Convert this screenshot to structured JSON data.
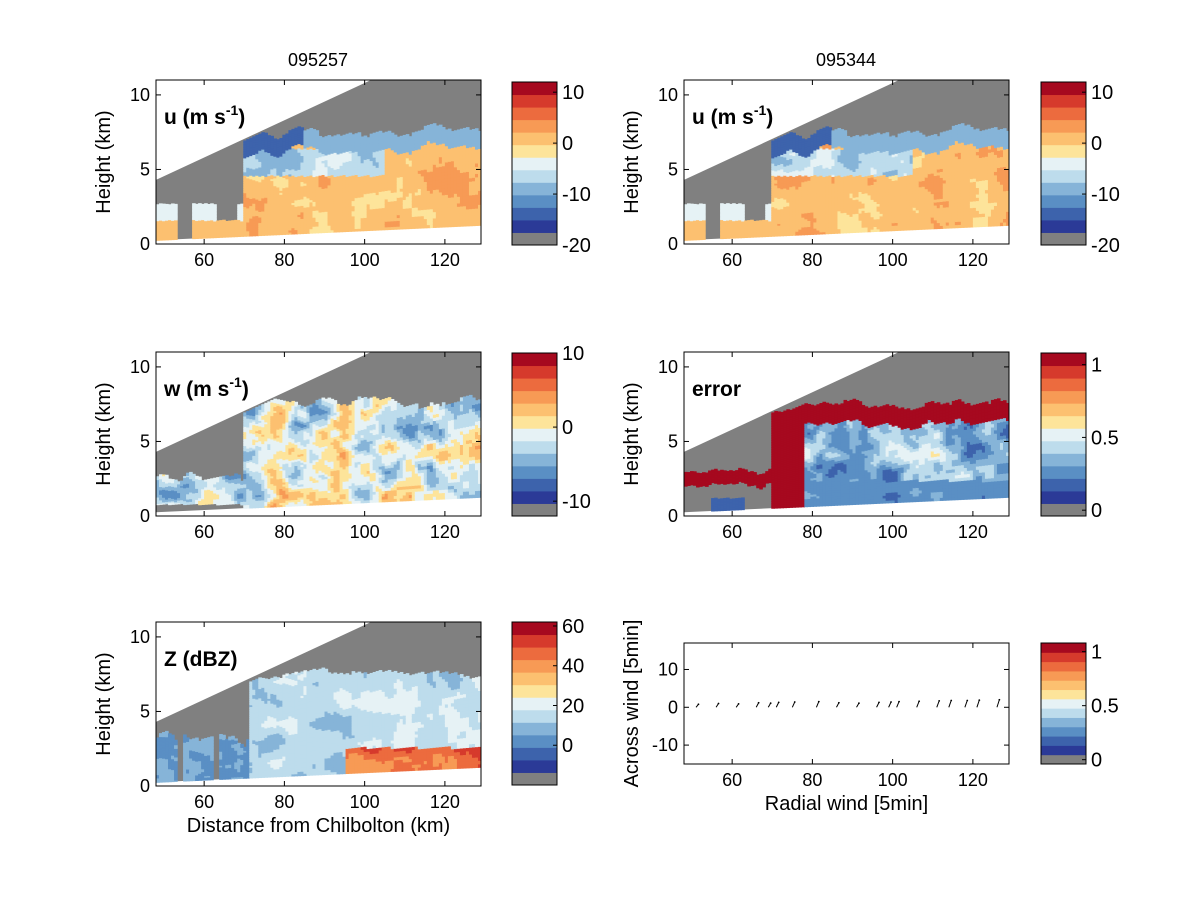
{
  "figure": {
    "column_titles": [
      "095257",
      "095344"
    ]
  },
  "palettes": {
    "filled": [
      "#2b3a97",
      "#3d63ac",
      "#5a8fc4",
      "#86b4d8",
      "#bddcec",
      "#e6f2f5",
      "#fde49a",
      "#fcc070",
      "#f79a55",
      "#ec6b3e",
      "#d63a2c",
      "#a6091f"
    ],
    "missing": "#808080",
    "quiver": "#000000"
  },
  "chart_data": [
    {
      "id": "u1",
      "type": "heatmap",
      "title": "095257",
      "inset_label": "u (m s",
      "inset_sup": "-1",
      "inset_close": ")",
      "xlabel": "",
      "ylabel": "Height (km)",
      "xlim": [
        48,
        129
      ],
      "ylim": [
        0,
        11
      ],
      "xticks": [
        "60",
        "80",
        "100",
        "120"
      ],
      "yticks": [
        "0",
        "5",
        "10"
      ],
      "colorbar": {
        "range": [
          -20,
          12
        ],
        "ticks": [
          "-20",
          "-10",
          "0",
          "10"
        ]
      }
    },
    {
      "id": "u2",
      "type": "heatmap",
      "title": "095344",
      "inset_label": "u (m s",
      "inset_sup": "-1",
      "inset_close": ")",
      "xlabel": "",
      "ylabel": "Height (km)",
      "xlim": [
        48,
        129
      ],
      "ylim": [
        0,
        11
      ],
      "xticks": [
        "60",
        "80",
        "100",
        "120"
      ],
      "yticks": [
        "0",
        "5",
        "10"
      ],
      "colorbar": {
        "range": [
          -20,
          12
        ],
        "ticks": [
          "-20",
          "-10",
          "0",
          "10"
        ]
      }
    },
    {
      "id": "w1",
      "type": "heatmap",
      "title": "",
      "inset_label": "w (m s",
      "inset_sup": "-1",
      "inset_close": ")",
      "xlabel": "",
      "ylabel": "Height (km)",
      "xlim": [
        48,
        129
      ],
      "ylim": [
        0,
        11
      ],
      "xticks": [
        "60",
        "80",
        "100",
        "120"
      ],
      "yticks": [
        "0",
        "5",
        "10"
      ],
      "colorbar": {
        "range": [
          -12,
          10
        ],
        "ticks": [
          "-10",
          "0",
          "10"
        ]
      }
    },
    {
      "id": "err",
      "type": "heatmap",
      "title": "",
      "inset_label": "error",
      "inset_sup": "",
      "inset_close": "",
      "xlabel": "",
      "ylabel": "Height (km)",
      "xlim": [
        48,
        129
      ],
      "ylim": [
        0,
        11
      ],
      "xticks": [
        "60",
        "80",
        "100",
        "120"
      ],
      "yticks": [
        "0",
        "5",
        "10"
      ],
      "colorbar": {
        "range": [
          -0.04,
          1.08
        ],
        "ticks": [
          "0",
          "0.5",
          "1"
        ]
      }
    },
    {
      "id": "z",
      "type": "heatmap",
      "title": "",
      "inset_label": "Z (dBZ)",
      "inset_sup": "",
      "inset_close": "",
      "xlabel": "Distance from Chilbolton (km)",
      "ylabel": "Height (km)",
      "xlim": [
        48,
        129
      ],
      "ylim": [
        0,
        11
      ],
      "xticks": [
        "60",
        "80",
        "100",
        "120"
      ],
      "yticks": [
        "0",
        "5",
        "10"
      ],
      "colorbar": {
        "range": [
          -20,
          62
        ],
        "ticks": [
          "0",
          "20",
          "40",
          "60"
        ]
      }
    },
    {
      "id": "quiver",
      "type": "scatter",
      "title": "",
      "inset_label": "",
      "inset_sup": "",
      "inset_close": "",
      "xlabel": "Radial wind [5min]",
      "ylabel": "Across wind [5min]",
      "xlim": [
        48,
        129
      ],
      "ylim": [
        -15,
        17
      ],
      "xticks": [
        "60",
        "80",
        "100",
        "120"
      ],
      "yticks": [
        "-10",
        "0",
        "10"
      ],
      "x": [
        51,
        56,
        61,
        66,
        69,
        71,
        75,
        81,
        86,
        91,
        96,
        99,
        101,
        106,
        111,
        114,
        118,
        121,
        126
      ],
      "y": [
        0.2,
        0.4,
        0.3,
        0.6,
        0.5,
        0.7,
        0.8,
        0.9,
        0.6,
        0.5,
        0.7,
        0.8,
        0.9,
        1.0,
        1.1,
        1.2,
        1.2,
        1.3,
        1.4
      ],
      "colorbar": {
        "range": [
          -0.04,
          1.08
        ],
        "ticks": [
          "0",
          "0.5",
          "1"
        ]
      }
    }
  ]
}
